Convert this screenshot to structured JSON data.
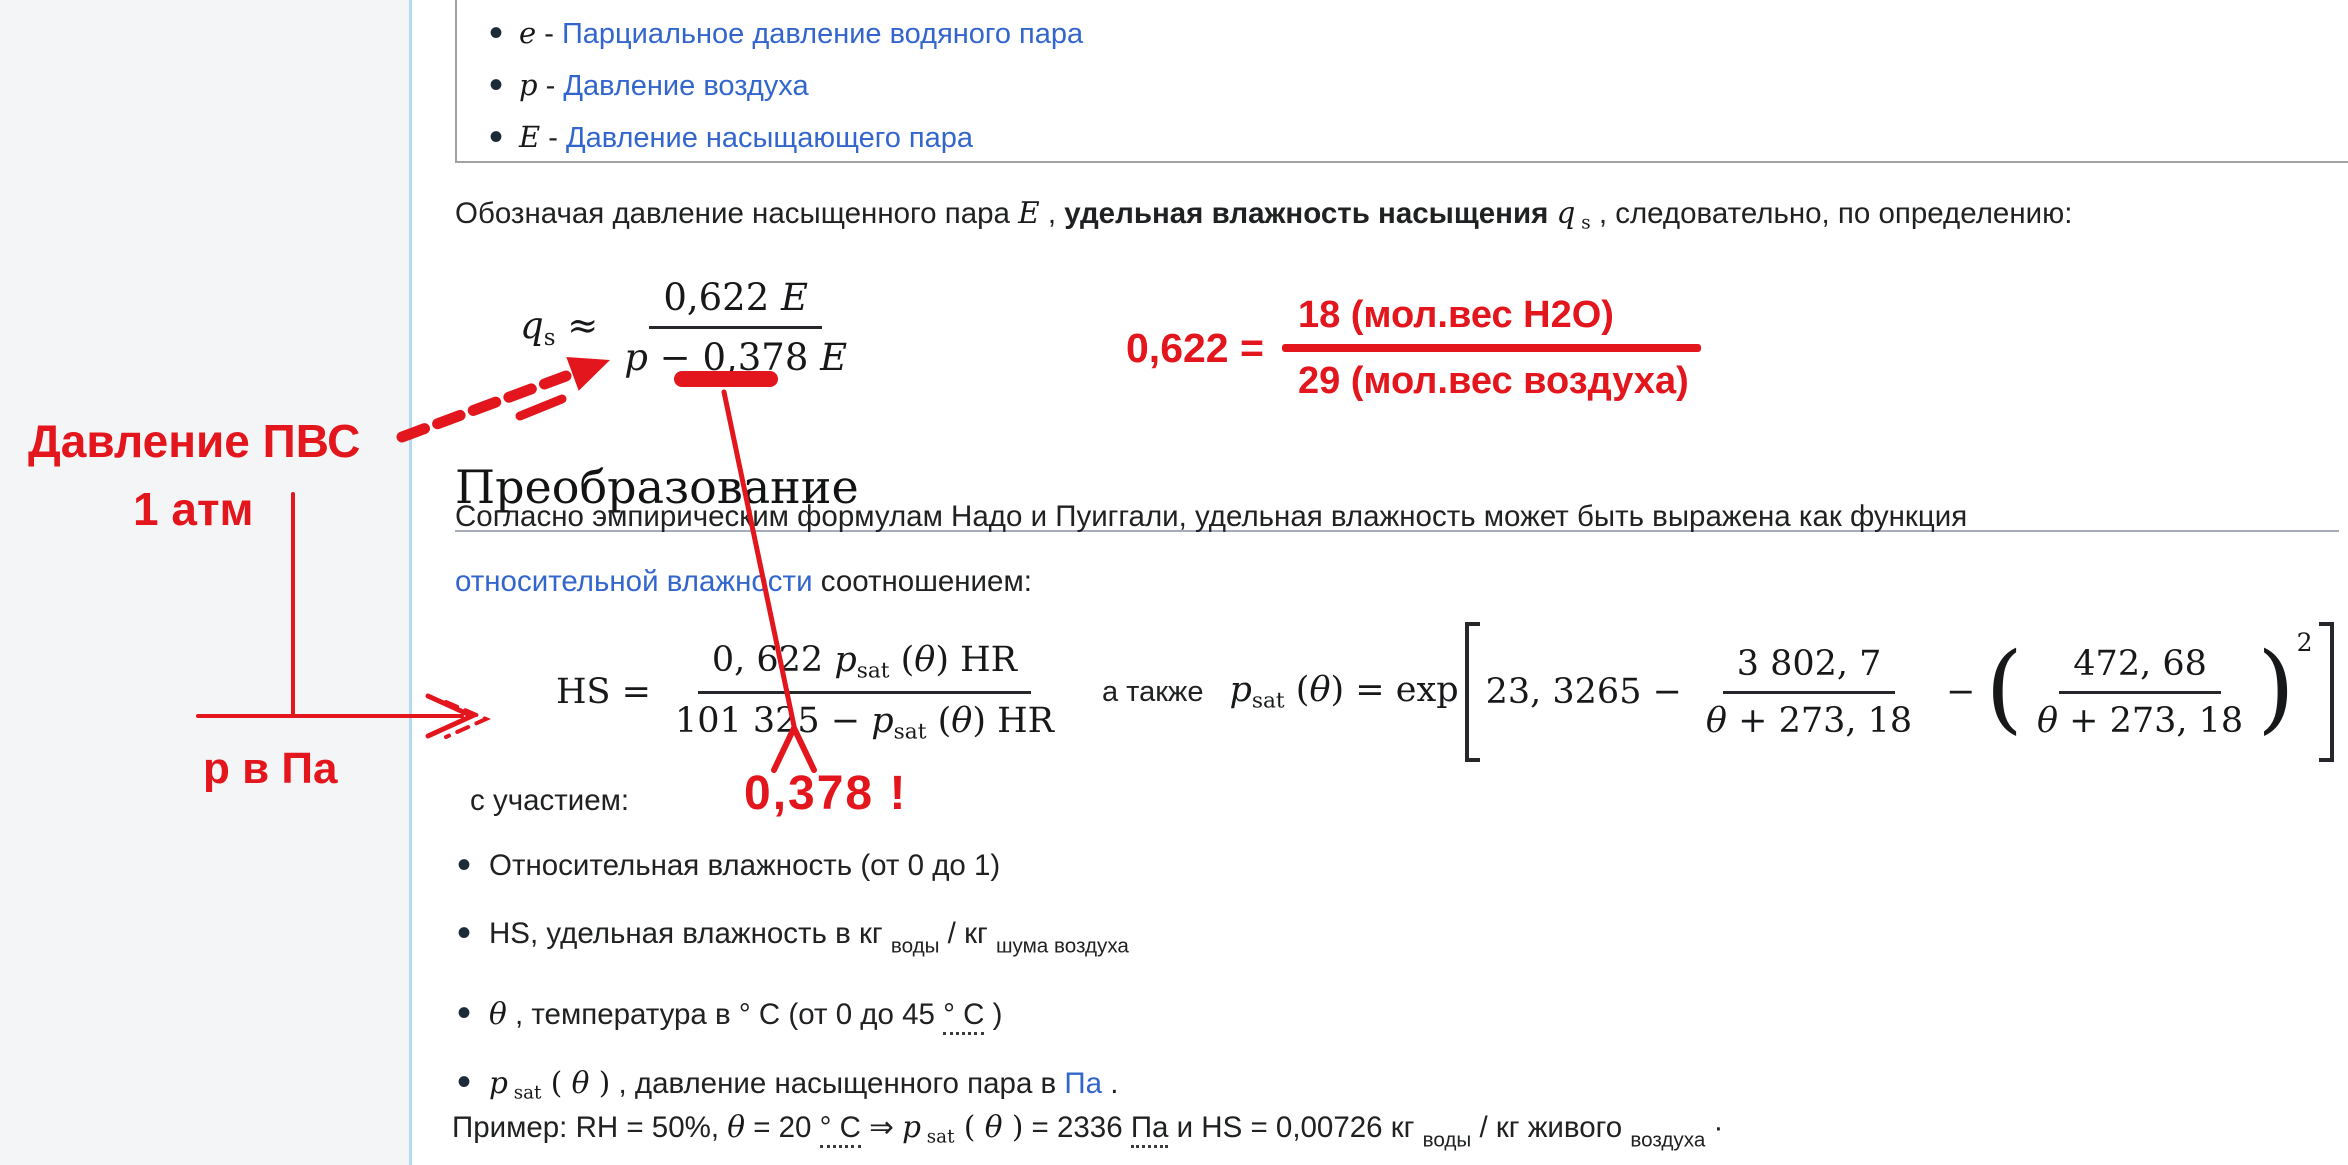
{
  "colors": {
    "red": "#e2161c",
    "link": "#3366cc",
    "text": "#202122",
    "sidebar_bg": "#f4f5f6",
    "divider": "#b9d8f1"
  },
  "top_list": {
    "items": [
      {
        "runs": [
          {
            "t": "e",
            "c": "mi"
          },
          {
            "t": " - "
          },
          {
            "t": "Парциальное давление водяного пара",
            "c": "a",
            "n": "link-partial-pressure"
          }
        ]
      },
      {
        "runs": [
          {
            "t": "p",
            "c": "mi"
          },
          {
            "t": " - "
          },
          {
            "t": "Давление воздуха",
            "c": "a",
            "n": "link-air-pressure"
          }
        ]
      },
      {
        "runs": [
          {
            "t": "E",
            "c": "mi"
          },
          {
            "t": " - "
          },
          {
            "t": "Давление насыщающего пара",
            "c": "a",
            "n": "link-saturation-pressure"
          }
        ]
      }
    ]
  },
  "para1": {
    "runs": [
      {
        "t": "Обозначая давление насыщенного пара "
      },
      {
        "t": "E",
        "c": "mi"
      },
      {
        "t": " , "
      },
      {
        "t": "удельная влажность насыщения ",
        "c": "b"
      },
      {
        "t": "q",
        "c": "mi"
      },
      {
        "t": " s",
        "c": "msub"
      },
      {
        "t": " , следовательно, по определению:"
      }
    ]
  },
  "formula1": {
    "lhs_runs": [
      {
        "t": "q",
        "c": "mi"
      },
      {
        "t": "s",
        "c": "msub"
      },
      {
        "t": " ≈",
        "c": "mn"
      }
    ],
    "num_runs": [
      {
        "t": "0,622 ",
        "c": "mn"
      },
      {
        "t": "E",
        "c": "mi"
      }
    ],
    "den_runs": [
      {
        "t": "p",
        "c": "mi"
      },
      {
        "t": " − 0,378 ",
        "c": "mn"
      },
      {
        "t": "E",
        "c": "mi"
      }
    ]
  },
  "red_fraction": {
    "lhs": "0,622 =",
    "numerator": "18 (мол.вес H2O)",
    "denominator": "29 (мол.вес воздуха)"
  },
  "annotations": {
    "pvs": "Давление ПВС",
    "atm": "1 атм",
    "p_pa": "р в Па",
    "v378": "0,378  !"
  },
  "heading": {
    "text": "Преобразование"
  },
  "para2": {
    "line1": "Согласно эмпирическим формулам Надо и Пуиггали, удельная влажность может быть выражена как функция",
    "line2_runs": [
      {
        "t": "относительной влажности",
        "c": "a",
        "n": "link-relative-humidity"
      },
      {
        "t": " соотношением:"
      }
    ]
  },
  "formula2": {
    "lhs_runs": [
      {
        "t": "HS =",
        "c": "mn"
      }
    ],
    "fracA_num_runs": [
      {
        "t": "0, 622 ",
        "c": "mn"
      },
      {
        "t": "p",
        "c": "mi"
      },
      {
        "t": "sat",
        "c": "msub"
      },
      {
        "t": " (",
        "c": "mn"
      },
      {
        "t": "θ",
        "c": "mi"
      },
      {
        "t": ")  HR",
        "c": "mn"
      }
    ],
    "fracA_den_runs": [
      {
        "t": "101 325 − ",
        "c": "mn"
      },
      {
        "t": "p",
        "c": "mi"
      },
      {
        "t": "sat",
        "c": "msub"
      },
      {
        "t": " (",
        "c": "mn"
      },
      {
        "t": "θ",
        "c": "mi"
      },
      {
        "t": ")  HR",
        "c": "mn"
      }
    ],
    "also": "а также",
    "rhs_head_runs": [
      {
        "t": "p",
        "c": "mi"
      },
      {
        "t": "sat",
        "c": "msub"
      },
      {
        "t": " (",
        "c": "mn"
      },
      {
        "t": "θ",
        "c": "mi"
      },
      {
        "t": ") = exp",
        "c": "mn"
      }
    ],
    "const_runs": [
      {
        "t": "23, 3265 −",
        "c": "mn"
      }
    ],
    "fracB_num_runs": [
      {
        "t": "3 802, 7",
        "c": "mn"
      }
    ],
    "fracB_den_runs": [
      {
        "t": "θ",
        "c": "mi"
      },
      {
        "t": " + 273, 18",
        "c": "mn"
      }
    ],
    "minus": "−",
    "lparen": "(",
    "fracC_num_runs": [
      {
        "t": "472, 68",
        "c": "mn"
      }
    ],
    "fracC_den_runs": [
      {
        "t": "θ",
        "c": "mi"
      },
      {
        "t": " + 273, 18",
        "c": "mn"
      }
    ],
    "rparen": ")",
    "sup2": "2"
  },
  "involving": {
    "text": "с участием:"
  },
  "bullets": {
    "items": [
      {
        "runs": [
          {
            "t": "Относительная влажность (от 0 до 1)"
          }
        ]
      },
      {
        "runs": [
          {
            "t": "HS, удельная влажность в кг "
          },
          {
            "t": "воды",
            "c": "sub"
          },
          {
            "t": " / кг "
          },
          {
            "t": "шума воздуха",
            "c": "sub"
          }
        ]
      },
      {
        "runs": [
          {
            "t": "θ",
            "c": "mi"
          },
          {
            "t": " , температура в ° C (от 0 до 45 "
          },
          {
            "t": "° C",
            "c": "dot"
          },
          {
            "t": " )"
          }
        ]
      },
      {
        "runs": [
          {
            "t": "p",
            "c": "mi"
          },
          {
            "t": " sat",
            "c": "msub"
          },
          {
            "t": " ( ",
            "c": "mn"
          },
          {
            "t": "θ",
            "c": "mi"
          },
          {
            "t": " )",
            "c": "mn"
          },
          {
            "t": " , давление насыщенного пара в "
          },
          {
            "t": "Па",
            "c": "a",
            "n": "link-pa"
          },
          {
            "t": " ."
          }
        ]
      }
    ]
  },
  "example": {
    "runs": [
      {
        "t": "Пример: RH = 50%, "
      },
      {
        "t": "θ",
        "c": "mi"
      },
      {
        "t": " = 20 "
      },
      {
        "t": "° C",
        "c": "dot"
      },
      {
        "t": " ⇒ "
      },
      {
        "t": "p",
        "c": "mi"
      },
      {
        "t": " sat",
        "c": "msub"
      },
      {
        "t": " ( ",
        "c": "mn"
      },
      {
        "t": "θ",
        "c": "mi"
      },
      {
        "t": " )",
        "c": "mn"
      },
      {
        "t": " = 2336 "
      },
      {
        "t": "Па",
        "c": "dot"
      },
      {
        "t": " и HS = 0,00726 кг "
      },
      {
        "t": "воды",
        "c": "sub"
      },
      {
        "t": " / кг живого "
      },
      {
        "t": "воздуха",
        "c": "sub"
      },
      {
        "t": " ·"
      }
    ]
  }
}
